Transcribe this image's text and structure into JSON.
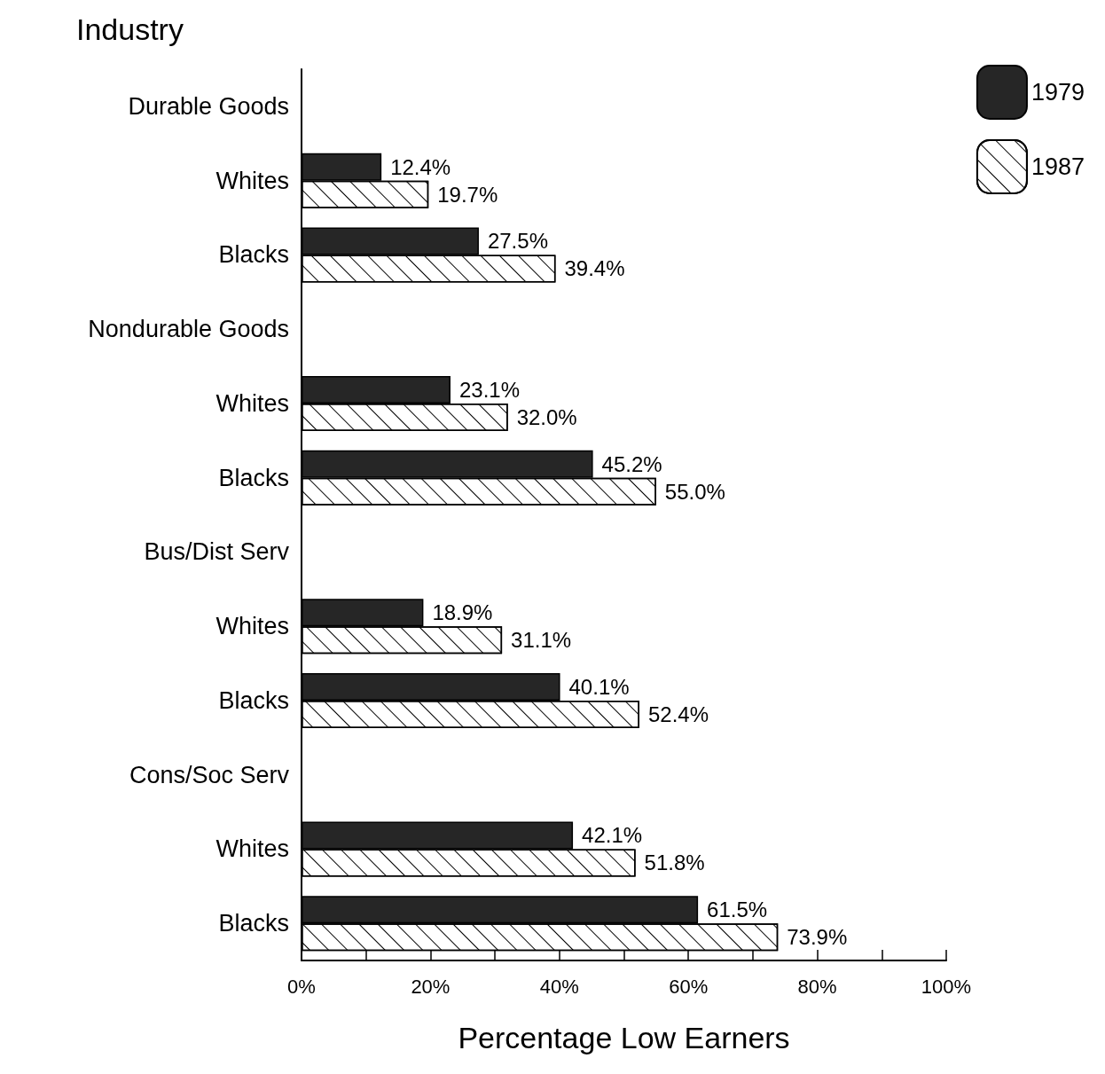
{
  "chart_data": {
    "type": "bar",
    "orientation": "horizontal",
    "ylabel": "Industry",
    "xlabel": "Percentage Low Earners",
    "categories": [
      "Durable Goods",
      "Whites",
      "Blacks",
      "Nondurable Goods",
      "Whites",
      "Blacks",
      "Bus/Dist Serv",
      "Whites",
      "Blacks",
      "Cons/Soc Serv",
      "Whites",
      "Blacks"
    ],
    "series": [
      {
        "name": "1979",
        "color": "#262626",
        "values": [
          null,
          12.4,
          27.5,
          null,
          23.1,
          45.2,
          null,
          18.9,
          40.1,
          null,
          42.1,
          61.5
        ],
        "value_labels": [
          null,
          "12.4%",
          "27.5%",
          null,
          "23.1%",
          "45.2%",
          null,
          "18.9%",
          "40.1%",
          null,
          "42.1%",
          "61.5%"
        ]
      },
      {
        "name": "1987",
        "color": "#ffffff",
        "values": [
          null,
          19.7,
          39.4,
          null,
          32.0,
          55.0,
          null,
          31.1,
          52.4,
          null,
          51.8,
          73.9
        ],
        "value_labels": [
          null,
          "19.7%",
          "39.4%",
          null,
          "32.0%",
          "55.0%",
          null,
          "31.1%",
          "52.4%",
          null,
          "51.8%",
          "73.9%"
        ]
      }
    ],
    "xlim": [
      0,
      100
    ],
    "xticks": [
      {
        "value": 0,
        "label": "0%"
      },
      {
        "value": 10,
        "label": null
      },
      {
        "value": 20,
        "label": "20%"
      },
      {
        "value": 30,
        "label": null
      },
      {
        "value": 40,
        "label": "40%"
      },
      {
        "value": 50,
        "label": null
      },
      {
        "value": 60,
        "label": "60%"
      },
      {
        "value": 70,
        "label": null
      },
      {
        "value": 80,
        "label": "80%"
      },
      {
        "value": 90,
        "label": null
      },
      {
        "value": 100,
        "label": "100%"
      }
    ],
    "grid": false,
    "legend": "top right"
  }
}
